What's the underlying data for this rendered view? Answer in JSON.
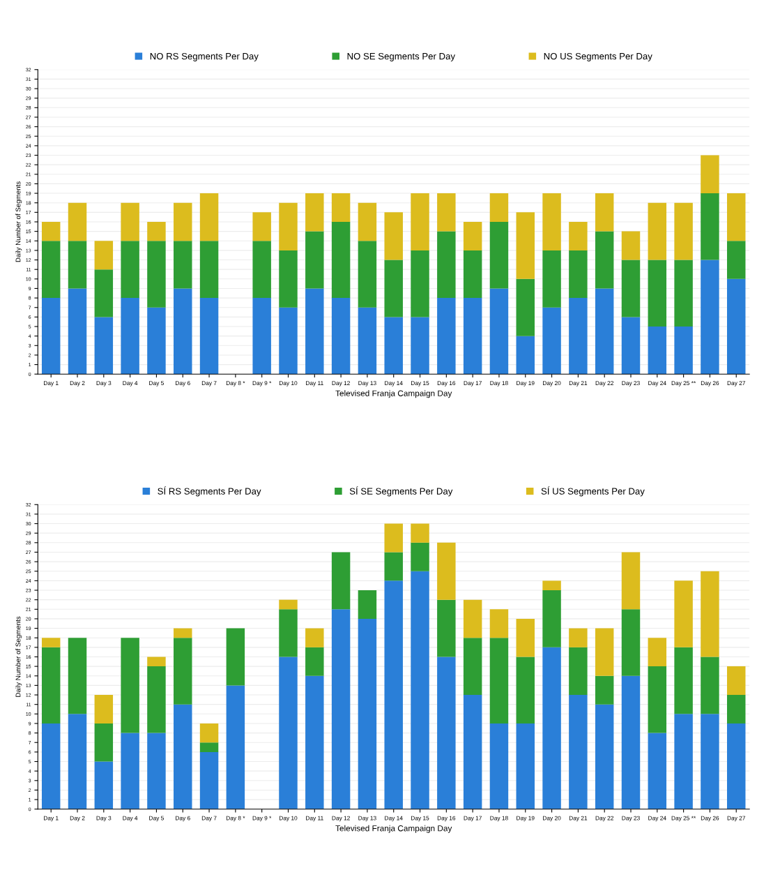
{
  "chart_data": [
    {
      "type": "bar",
      "stacked": true,
      "xlabel": "Televised Franja Campaign Day",
      "ylabel": "Daily Number of Segments",
      "categories": [
        "Day 1",
        "Day 2",
        "Day 3",
        "Day 4",
        "Day 5",
        "Day 6",
        "Day 7",
        "Day 8 *",
        "Day 9 *",
        "Day 10",
        "Day 11",
        "Day 12",
        "Day 13",
        "Day 14",
        "Day 15",
        "Day 16",
        "Day 17",
        "Day 18",
        "Day 19",
        "Day 20",
        "Day 21",
        "Day 22",
        "Day 23",
        "Day 24",
        "Day 25 **",
        "Day 26",
        "Day 27"
      ],
      "series": [
        {
          "name": "NO RS Segments Per Day",
          "color": "#2a7fd8",
          "values": [
            8,
            9,
            6,
            8,
            7,
            9,
            8,
            null,
            8,
            7,
            9,
            8,
            7,
            6,
            6,
            8,
            8,
            9,
            4,
            7,
            8,
            9,
            6,
            5,
            5,
            12,
            10
          ]
        },
        {
          "name": "NO SE Segments Per Day",
          "color": "#2e9e34",
          "values": [
            6,
            5,
            5,
            6,
            7,
            5,
            6,
            null,
            6,
            6,
            6,
            8,
            7,
            6,
            7,
            7,
            5,
            7,
            6,
            6,
            5,
            6,
            6,
            7,
            7,
            7,
            4
          ]
        },
        {
          "name": "NO US Segments Per Day",
          "color": "#dcbc1e",
          "values": [
            2,
            4,
            3,
            4,
            2,
            4,
            5,
            null,
            3,
            5,
            4,
            3,
            4,
            5,
            6,
            4,
            3,
            3,
            7,
            6,
            3,
            4,
            3,
            6,
            6,
            4,
            5
          ]
        }
      ],
      "ylim": [
        0,
        32
      ],
      "yticks": [
        0,
        1,
        2,
        3,
        4,
        5,
        6,
        7,
        8,
        9,
        10,
        11,
        12,
        13,
        14,
        15,
        16,
        17,
        18,
        19,
        20,
        21,
        22,
        23,
        24,
        25,
        26,
        27,
        28,
        29,
        30,
        31,
        32
      ],
      "grid": "y",
      "legend": "top"
    },
    {
      "type": "bar",
      "stacked": true,
      "xlabel": "Televised Franja Campaign Day",
      "ylabel": "Daily Number of Segments",
      "categories": [
        "Day 1",
        "Day 2",
        "Day 3",
        "Day 4",
        "Day 5",
        "Day 6",
        "Day 7",
        "Day 8 *",
        "Day 9 *",
        "Day 10",
        "Day 11",
        "Day 12",
        "Day 13",
        "Day 14",
        "Day 15",
        "Day 16",
        "Day 17",
        "Day 18",
        "Day 19",
        "Day 20",
        "Day 21",
        "Day 22",
        "Day 23",
        "Day 24",
        "Day 25 **",
        "Day 26",
        "Day 27"
      ],
      "series": [
        {
          "name": "SÍ RS Segments Per Day",
          "color": "#2a7fd8",
          "values": [
            9,
            10,
            5,
            8,
            8,
            11,
            6,
            13,
            null,
            16,
            14,
            21,
            20,
            24,
            25,
            16,
            12,
            9,
            9,
            17,
            12,
            11,
            14,
            8,
            10,
            10,
            9
          ]
        },
        {
          "name": "SÍ SE Segments Per Day",
          "color": "#2e9e34",
          "values": [
            8,
            8,
            4,
            10,
            7,
            7,
            1,
            6,
            null,
            5,
            3,
            6,
            3,
            3,
            3,
            6,
            6,
            9,
            7,
            6,
            5,
            3,
            7,
            7,
            7,
            6,
            3
          ]
        },
        {
          "name": "SÍ US Segments Per Day",
          "color": "#dcbc1e",
          "values": [
            1,
            0,
            3,
            0,
            1,
            1,
            2,
            0,
            null,
            1,
            2,
            0,
            0,
            3,
            2,
            6,
            4,
            3,
            4,
            1,
            2,
            5,
            6,
            3,
            7,
            9,
            3
          ]
        }
      ],
      "ylim": [
        0,
        32
      ],
      "yticks": [
        0,
        1,
        2,
        3,
        4,
        5,
        6,
        7,
        8,
        9,
        10,
        11,
        12,
        13,
        14,
        15,
        16,
        17,
        18,
        19,
        20,
        21,
        22,
        23,
        24,
        25,
        26,
        27,
        28,
        29,
        30,
        31,
        32
      ],
      "grid": "y",
      "legend": "top"
    }
  ]
}
